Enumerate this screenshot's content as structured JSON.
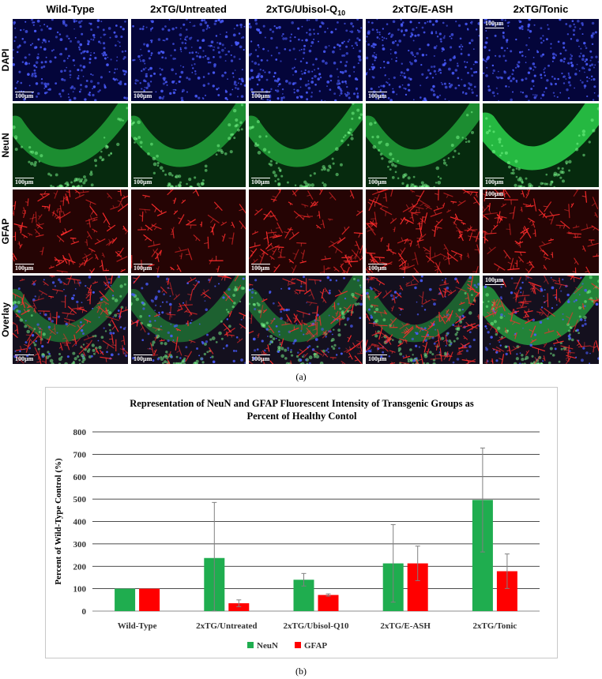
{
  "figure": {
    "columns": [
      "Wild-Type",
      "2xTG/Untreated",
      "2xTG/Ubisol-Q",
      "2xTG/E-ASH",
      "2xTG/Tonic"
    ],
    "column_subscript": "10",
    "rows": [
      "DAPI",
      "NeuN",
      "GFAP",
      "Overlay"
    ],
    "scale_bar_label": "100µm",
    "caption_a": "(a)",
    "caption_b": "(b)",
    "stain_colors": {
      "DAPI": "#1a24c8",
      "NeuN": "#2bd14a",
      "GFAP": "#e8202a",
      "Overlay": "#c81c30"
    }
  },
  "chart_data": {
    "type": "bar",
    "title_line1": "Representation of NeuN and GFAP Fluorescent Intensity of Transgenic Groups as",
    "title_line2": "Percent of Healthy Contol",
    "ylabel": "Percent of Wild-Type Control (%)",
    "xlabel": "",
    "ylim": [
      0,
      800
    ],
    "yticks": [
      0,
      100,
      200,
      300,
      400,
      500,
      600,
      700,
      800
    ],
    "grid": true,
    "legend_position": "bottom",
    "categories": [
      "Wild-Type",
      "2xTG/Untreated",
      "2xTG/Ubisol-Q10",
      "2xTG/E-ASH",
      "2xTG/Tonic"
    ],
    "series": [
      {
        "name": "NeuN",
        "color": "#1fad4f",
        "values": [
          100,
          237,
          140,
          213,
          496
        ],
        "errors": [
          0,
          248,
          28,
          173,
          232
        ]
      },
      {
        "name": "GFAP",
        "color": "#ff0000",
        "values": [
          100,
          35,
          72,
          213,
          178
        ],
        "errors": [
          0,
          15,
          5,
          77,
          77
        ]
      }
    ]
  }
}
